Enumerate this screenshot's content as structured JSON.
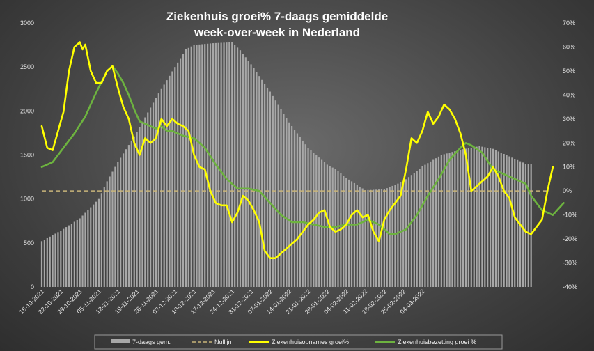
{
  "chart_data": {
    "type": "bar+line",
    "title": [
      "Ziekenhuis groei% 7-daags gemiddelde",
      "week-over-week in Nederland"
    ],
    "x_tick_labels": [
      "15-10-2021",
      "22-10-2021",
      "29-10-2021",
      "05-11-2021",
      "12-11-2021",
      "19-11-2021",
      "26-11-2021",
      "03-12-2021",
      "10-12-2021",
      "17-12-2021",
      "24-12-2021",
      "31-12-2021",
      "07-01-2022",
      "14-01-2022",
      "21-01-2022",
      "28-01-2022",
      "04-02-2022",
      "11-02-2022",
      "18-02-2022",
      "25-02-2022",
      "04-03-2022"
    ],
    "y_left": {
      "range": [
        0,
        3000
      ],
      "ticks": [
        "0",
        "500",
        "1000",
        "1500",
        "2000",
        "2500",
        "3000"
      ]
    },
    "y_right": {
      "range": [
        -40,
        70
      ],
      "unit": "%",
      "ticks": [
        "-40%",
        "-30%",
        "-20%",
        "-10%",
        "0%",
        "10%",
        "20%",
        "30%",
        "40%",
        "50%",
        "60%",
        "70%"
      ]
    },
    "grid": false,
    "legend_position": "bottom",
    "colors": {
      "bars": "#a8a8a8",
      "zero_line": "#c9b57a",
      "admissions": "#ffff00",
      "occupancy": "#6db33f"
    },
    "series": [
      {
        "name": "7-daags gem.",
        "type": "bar",
        "axis": "left",
        "x_start": "15-10-2021",
        "step_days": 1,
        "anchors": [
          [
            0,
            520
          ],
          [
            7,
            640
          ],
          [
            14,
            780
          ],
          [
            21,
            1000
          ],
          [
            24,
            1200
          ],
          [
            28,
            1420
          ],
          [
            35,
            1760
          ],
          [
            42,
            2150
          ],
          [
            49,
            2500
          ],
          [
            53,
            2700
          ],
          [
            56,
            2750
          ],
          [
            63,
            2770
          ],
          [
            70,
            2780
          ],
          [
            73,
            2690
          ],
          [
            77,
            2530
          ],
          [
            84,
            2220
          ],
          [
            91,
            1870
          ],
          [
            98,
            1580
          ],
          [
            105,
            1390
          ],
          [
            108,
            1340
          ],
          [
            112,
            1240
          ],
          [
            119,
            1100
          ],
          [
            126,
            1110
          ],
          [
            133,
            1200
          ],
          [
            140,
            1370
          ],
          [
            147,
            1500
          ],
          [
            154,
            1560
          ],
          [
            161,
            1600
          ],
          [
            166,
            1570
          ],
          [
            168,
            1540
          ],
          [
            173,
            1470
          ],
          [
            178,
            1400
          ],
          [
            180,
            1400
          ]
        ]
      },
      {
        "name": "Nullijn",
        "type": "dashed-line",
        "axis": "right",
        "value": 0
      },
      {
        "name": "Ziekenhuisopnames groei%",
        "type": "line",
        "axis": "right",
        "x_start": "15-10-2021",
        "step_days": 1,
        "anchors": [
          [
            0,
            27
          ],
          [
            2,
            18
          ],
          [
            4,
            17
          ],
          [
            6,
            25
          ],
          [
            8,
            33
          ],
          [
            10,
            50
          ],
          [
            12,
            60
          ],
          [
            13,
            61
          ],
          [
            14,
            62
          ],
          [
            15,
            59
          ],
          [
            16,
            61
          ],
          [
            18,
            50
          ],
          [
            20,
            45
          ],
          [
            22,
            45
          ],
          [
            24,
            50
          ],
          [
            26,
            52
          ],
          [
            28,
            43
          ],
          [
            30,
            35
          ],
          [
            32,
            30
          ],
          [
            34,
            20
          ],
          [
            36,
            15
          ],
          [
            38,
            22
          ],
          [
            40,
            20
          ],
          [
            42,
            22
          ],
          [
            44,
            30
          ],
          [
            46,
            27
          ],
          [
            48,
            30
          ],
          [
            50,
            28
          ],
          [
            52,
            27
          ],
          [
            54,
            25
          ],
          [
            56,
            15
          ],
          [
            58,
            10
          ],
          [
            60,
            9
          ],
          [
            62,
            0
          ],
          [
            64,
            -5
          ],
          [
            66,
            -6
          ],
          [
            68,
            -6
          ],
          [
            70,
            -13
          ],
          [
            72,
            -9
          ],
          [
            74,
            -2
          ],
          [
            76,
            -4
          ],
          [
            78,
            -8
          ],
          [
            80,
            -13
          ],
          [
            82,
            -25
          ],
          [
            84,
            -28
          ],
          [
            86,
            -28
          ],
          [
            88,
            -26
          ],
          [
            90,
            -24
          ],
          [
            92,
            -22
          ],
          [
            94,
            -20
          ],
          [
            96,
            -17
          ],
          [
            98,
            -14
          ],
          [
            100,
            -12
          ],
          [
            102,
            -9
          ],
          [
            104,
            -8
          ],
          [
            106,
            -15
          ],
          [
            108,
            -17
          ],
          [
            110,
            -16
          ],
          [
            112,
            -14
          ],
          [
            114,
            -10
          ],
          [
            116,
            -8
          ],
          [
            118,
            -11
          ],
          [
            120,
            -10
          ],
          [
            122,
            -17
          ],
          [
            124,
            -21
          ],
          [
            126,
            -12
          ],
          [
            128,
            -8
          ],
          [
            130,
            -5
          ],
          [
            132,
            -2
          ],
          [
            134,
            9
          ],
          [
            136,
            22
          ],
          [
            138,
            20
          ],
          [
            140,
            25
          ],
          [
            142,
            33
          ],
          [
            144,
            28
          ],
          [
            146,
            31
          ],
          [
            148,
            36
          ],
          [
            150,
            34
          ],
          [
            152,
            30
          ],
          [
            154,
            24
          ],
          [
            156,
            15
          ],
          [
            158,
            0
          ],
          [
            160,
            2
          ],
          [
            162,
            4
          ],
          [
            164,
            6
          ],
          [
            166,
            10
          ],
          [
            168,
            6
          ],
          [
            170,
            0
          ],
          [
            172,
            -3
          ],
          [
            174,
            -11
          ],
          [
            176,
            -14
          ],
          [
            178,
            -17
          ],
          [
            180,
            -18
          ],
          [
            182,
            -15
          ],
          [
            184,
            -12
          ],
          [
            186,
            0
          ],
          [
            188,
            10
          ]
        ]
      },
      {
        "name": "Ziekenhuisbezetting groei %",
        "type": "line",
        "axis": "right",
        "x_start": "15-10-2021",
        "step_days": 1,
        "anchors": [
          [
            0,
            10
          ],
          [
            4,
            12
          ],
          [
            8,
            18
          ],
          [
            12,
            24
          ],
          [
            16,
            31
          ],
          [
            20,
            41
          ],
          [
            24,
            50
          ],
          [
            26,
            52
          ],
          [
            28,
            49
          ],
          [
            30,
            45
          ],
          [
            32,
            40
          ],
          [
            34,
            34
          ],
          [
            36,
            29
          ],
          [
            38,
            28
          ],
          [
            40,
            27
          ],
          [
            42,
            26
          ],
          [
            44,
            27
          ],
          [
            46,
            25
          ],
          [
            48,
            25
          ],
          [
            50,
            24
          ],
          [
            52,
            23
          ],
          [
            56,
            22
          ],
          [
            60,
            18
          ],
          [
            64,
            11
          ],
          [
            68,
            5
          ],
          [
            72,
            1
          ],
          [
            76,
            1
          ],
          [
            80,
            0
          ],
          [
            84,
            -5
          ],
          [
            88,
            -10
          ],
          [
            92,
            -13
          ],
          [
            96,
            -13
          ],
          [
            100,
            -14
          ],
          [
            104,
            -15
          ],
          [
            108,
            -15
          ],
          [
            112,
            -14
          ],
          [
            116,
            -14
          ],
          [
            120,
            -12
          ],
          [
            124,
            -14
          ],
          [
            128,
            -18
          ],
          [
            130,
            -18
          ],
          [
            134,
            -16
          ],
          [
            138,
            -10
          ],
          [
            142,
            -2
          ],
          [
            146,
            5
          ],
          [
            150,
            13
          ],
          [
            154,
            18
          ],
          [
            156,
            20
          ],
          [
            158,
            19
          ],
          [
            162,
            16
          ],
          [
            166,
            9
          ],
          [
            170,
            7
          ],
          [
            174,
            5
          ],
          [
            178,
            3
          ],
          [
            180,
            -2
          ],
          [
            182,
            -5
          ],
          [
            184,
            -8
          ],
          [
            188,
            -10
          ],
          [
            192,
            -5
          ]
        ]
      }
    ]
  },
  "legend": [
    {
      "label": "7-daags gem.",
      "icon": "bar-swatch"
    },
    {
      "label": "Nullijn",
      "icon": "dashed-line"
    },
    {
      "label": "Ziekenhuisopnames groei%",
      "icon": "line-swatch"
    },
    {
      "label": "Ziekenhuisbezetting groei %",
      "icon": "line-swatch"
    }
  ]
}
